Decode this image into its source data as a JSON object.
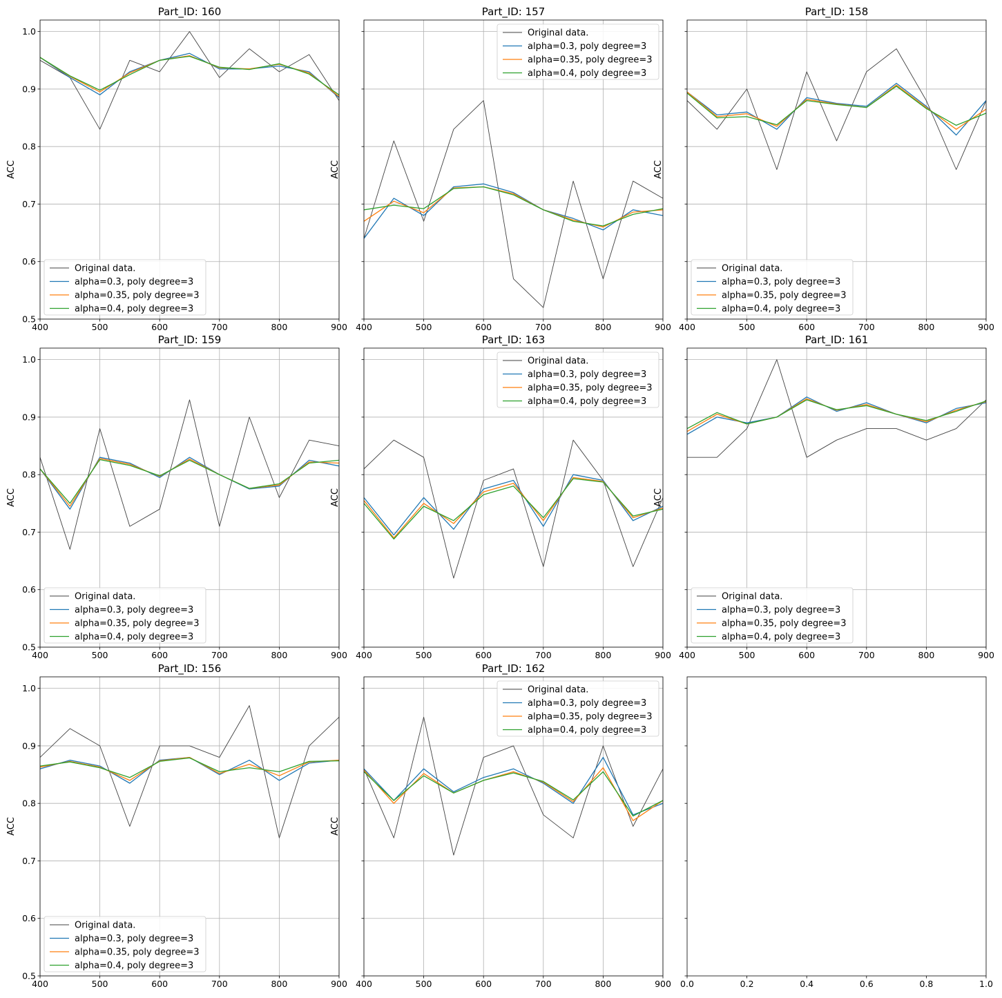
{
  "legend_labels": [
    "Original data.",
    "alpha=0.3, poly degree=3",
    "alpha=0.35, poly degree=3",
    "alpha=0.4, poly degree=3"
  ],
  "colors": {
    "original": "#404040",
    "a030": "#1f77b4",
    "a035": "#ff7f0e",
    "a040": "#2ca02c",
    "grid": "#b0b0b0"
  },
  "chart_data": [
    {
      "type": "line",
      "title": "Part_ID: 160",
      "ylabel": "ACC",
      "xlim": [
        400,
        900
      ],
      "ylim": [
        0.5,
        1.02
      ],
      "xticks": [
        400,
        500,
        600,
        700,
        800,
        900
      ],
      "yticks": [
        0.5,
        0.6,
        0.7,
        0.8,
        0.9,
        1.0
      ],
      "grid": true,
      "legend": "lower-left",
      "x": [
        400,
        450,
        500,
        550,
        600,
        650,
        700,
        750,
        800,
        850,
        900
      ],
      "series": [
        {
          "name": "Original data.",
          "values": [
            0.95,
            0.92,
            0.83,
            0.95,
            0.93,
            1.0,
            0.92,
            0.97,
            0.93,
            0.96,
            0.88
          ]
        },
        {
          "name": "alpha=0.3, poly degree=3",
          "values": [
            0.955,
            0.92,
            0.89,
            0.93,
            0.95,
            0.962,
            0.935,
            0.935,
            0.94,
            0.93,
            0.885
          ]
        },
        {
          "name": "alpha=0.35, poly degree=3",
          "values": [
            0.955,
            0.922,
            0.895,
            0.928,
            0.95,
            0.958,
            0.937,
            0.935,
            0.943,
            0.928,
            0.887
          ]
        },
        {
          "name": "alpha=0.4, poly degree=3",
          "values": [
            0.955,
            0.923,
            0.898,
            0.925,
            0.95,
            0.957,
            0.938,
            0.934,
            0.944,
            0.926,
            0.89
          ]
        }
      ]
    },
    {
      "type": "line",
      "title": "Part_ID: 157",
      "ylabel": "ACC",
      "xlim": [
        400,
        900
      ],
      "ylim": [
        0.5,
        1.02
      ],
      "xticks": [
        400,
        500,
        600,
        700,
        800,
        900
      ],
      "yticks": [
        0.5,
        0.6,
        0.7,
        0.8,
        0.9,
        1.0
      ],
      "grid": true,
      "legend": "upper-right",
      "x": [
        400,
        450,
        500,
        550,
        600,
        650,
        700,
        750,
        800,
        850,
        900
      ],
      "series": [
        {
          "name": "Original data.",
          "values": [
            0.64,
            0.81,
            0.67,
            0.83,
            0.88,
            0.57,
            0.52,
            0.74,
            0.57,
            0.74,
            0.71
          ]
        },
        {
          "name": "alpha=0.3, poly degree=3",
          "values": [
            0.64,
            0.71,
            0.68,
            0.73,
            0.735,
            0.72,
            0.69,
            0.675,
            0.655,
            0.69,
            0.68
          ]
        },
        {
          "name": "alpha=0.35, poly degree=3",
          "values": [
            0.67,
            0.705,
            0.685,
            0.728,
            0.73,
            0.718,
            0.69,
            0.672,
            0.66,
            0.686,
            0.69
          ]
        },
        {
          "name": "alpha=0.4, poly degree=3",
          "values": [
            0.69,
            0.698,
            0.692,
            0.727,
            0.73,
            0.716,
            0.69,
            0.67,
            0.662,
            0.682,
            0.692
          ]
        }
      ]
    },
    {
      "type": "line",
      "title": "Part_ID: 158",
      "ylabel": "ACC",
      "xlim": [
        400,
        900
      ],
      "ylim": [
        0.5,
        1.02
      ],
      "xticks": [
        400,
        500,
        600,
        700,
        800,
        900
      ],
      "yticks": [
        0.5,
        0.6,
        0.7,
        0.8,
        0.9,
        1.0
      ],
      "grid": true,
      "legend": "lower-left",
      "x": [
        400,
        450,
        500,
        550,
        600,
        650,
        700,
        750,
        800,
        850,
        900
      ],
      "series": [
        {
          "name": "Original data.",
          "values": [
            0.88,
            0.83,
            0.9,
            0.76,
            0.93,
            0.81,
            0.93,
            0.97,
            0.88,
            0.76,
            0.88
          ]
        },
        {
          "name": "alpha=0.3, poly degree=3",
          "values": [
            0.895,
            0.855,
            0.86,
            0.83,
            0.885,
            0.875,
            0.87,
            0.91,
            0.87,
            0.82,
            0.88
          ]
        },
        {
          "name": "alpha=0.35, poly degree=3",
          "values": [
            0.895,
            0.852,
            0.857,
            0.835,
            0.882,
            0.874,
            0.868,
            0.907,
            0.868,
            0.83,
            0.865
          ]
        },
        {
          "name": "alpha=0.4, poly degree=3",
          "values": [
            0.893,
            0.85,
            0.852,
            0.838,
            0.88,
            0.873,
            0.868,
            0.905,
            0.866,
            0.837,
            0.858
          ]
        }
      ]
    },
    {
      "type": "line",
      "title": "Part_ID: 159",
      "ylabel": "ACC",
      "xlim": [
        400,
        900
      ],
      "ylim": [
        0.5,
        1.02
      ],
      "xticks": [
        400,
        500,
        600,
        700,
        800,
        900
      ],
      "yticks": [
        0.5,
        0.6,
        0.7,
        0.8,
        0.9,
        1.0
      ],
      "grid": true,
      "legend": "lower-left",
      "x": [
        400,
        450,
        500,
        550,
        600,
        650,
        700,
        750,
        800,
        850,
        900
      ],
      "series": [
        {
          "name": "Original data.",
          "values": [
            0.83,
            0.67,
            0.88,
            0.71,
            0.74,
            0.93,
            0.71,
            0.9,
            0.76,
            0.86,
            0.85
          ]
        },
        {
          "name": "alpha=0.3, poly degree=3",
          "values": [
            0.81,
            0.74,
            0.83,
            0.82,
            0.795,
            0.83,
            0.8,
            0.775,
            0.78,
            0.825,
            0.815
          ]
        },
        {
          "name": "alpha=0.35, poly degree=3",
          "values": [
            0.81,
            0.745,
            0.828,
            0.818,
            0.797,
            0.827,
            0.8,
            0.776,
            0.782,
            0.822,
            0.82
          ]
        },
        {
          "name": "alpha=0.4, poly degree=3",
          "values": [
            0.81,
            0.75,
            0.826,
            0.816,
            0.798,
            0.825,
            0.8,
            0.776,
            0.784,
            0.82,
            0.825
          ]
        }
      ]
    },
    {
      "type": "line",
      "title": "Part_ID: 163",
      "ylabel": "ACC",
      "xlim": [
        400,
        900
      ],
      "ylim": [
        0.5,
        1.02
      ],
      "xticks": [
        400,
        500,
        600,
        700,
        800,
        900
      ],
      "yticks": [
        0.5,
        0.6,
        0.7,
        0.8,
        0.9,
        1.0
      ],
      "grid": true,
      "legend": "upper-right",
      "x": [
        400,
        450,
        500,
        550,
        600,
        650,
        700,
        750,
        800,
        850,
        900
      ],
      "series": [
        {
          "name": "Original data.",
          "values": [
            0.81,
            0.86,
            0.83,
            0.62,
            0.79,
            0.81,
            0.64,
            0.86,
            0.79,
            0.64,
            0.76
          ]
        },
        {
          "name": "alpha=0.3, poly degree=3",
          "values": [
            0.76,
            0.695,
            0.76,
            0.705,
            0.775,
            0.79,
            0.71,
            0.8,
            0.79,
            0.72,
            0.745
          ]
        },
        {
          "name": "alpha=0.35, poly degree=3",
          "values": [
            0.755,
            0.69,
            0.75,
            0.715,
            0.77,
            0.785,
            0.72,
            0.795,
            0.788,
            0.725,
            0.742
          ]
        },
        {
          "name": "alpha=0.4, poly degree=3",
          "values": [
            0.75,
            0.688,
            0.745,
            0.72,
            0.765,
            0.78,
            0.725,
            0.793,
            0.787,
            0.728,
            0.74
          ]
        }
      ]
    },
    {
      "type": "line",
      "title": "Part_ID: 161",
      "ylabel": "ACC",
      "xlim": [
        400,
        900
      ],
      "ylim": [
        0.5,
        1.02
      ],
      "xticks": [
        400,
        500,
        600,
        700,
        800,
        900
      ],
      "yticks": [
        0.5,
        0.6,
        0.7,
        0.8,
        0.9,
        1.0
      ],
      "grid": true,
      "legend": "lower-left",
      "x": [
        400,
        450,
        500,
        550,
        600,
        650,
        700,
        750,
        800,
        850,
        900
      ],
      "series": [
        {
          "name": "Original data.",
          "values": [
            0.83,
            0.83,
            0.88,
            1.0,
            0.83,
            0.86,
            0.88,
            0.88,
            0.86,
            0.88,
            0.93
          ]
        },
        {
          "name": "alpha=0.3, poly degree=3",
          "values": [
            0.87,
            0.9,
            0.89,
            0.9,
            0.935,
            0.91,
            0.925,
            0.905,
            0.89,
            0.915,
            0.925
          ]
        },
        {
          "name": "alpha=0.35, poly degree=3",
          "values": [
            0.875,
            0.905,
            0.888,
            0.9,
            0.932,
            0.912,
            0.922,
            0.905,
            0.892,
            0.912,
            0.927
          ]
        },
        {
          "name": "alpha=0.4, poly degree=3",
          "values": [
            0.88,
            0.908,
            0.888,
            0.9,
            0.93,
            0.913,
            0.92,
            0.905,
            0.894,
            0.91,
            0.928
          ]
        }
      ]
    },
    {
      "type": "line",
      "title": "Part_ID: 156",
      "ylabel": "ACC",
      "xlim": [
        400,
        900
      ],
      "ylim": [
        0.5,
        1.02
      ],
      "xticks": [
        400,
        500,
        600,
        700,
        800,
        900
      ],
      "yticks": [
        0.5,
        0.6,
        0.7,
        0.8,
        0.9,
        1.0
      ],
      "grid": true,
      "legend": "lower-left",
      "x": [
        400,
        450,
        500,
        550,
        600,
        650,
        700,
        750,
        800,
        850,
        900
      ],
      "series": [
        {
          "name": "Original data.",
          "values": [
            0.88,
            0.93,
            0.9,
            0.76,
            0.9,
            0.9,
            0.88,
            0.97,
            0.74,
            0.9,
            0.95
          ]
        },
        {
          "name": "alpha=0.3, poly degree=3",
          "values": [
            0.86,
            0.875,
            0.865,
            0.835,
            0.875,
            0.88,
            0.85,
            0.875,
            0.84,
            0.87,
            0.875
          ]
        },
        {
          "name": "alpha=0.35, poly degree=3",
          "values": [
            0.863,
            0.873,
            0.863,
            0.84,
            0.874,
            0.88,
            0.852,
            0.868,
            0.848,
            0.872,
            0.875
          ]
        },
        {
          "name": "alpha=0.4, poly degree=3",
          "values": [
            0.865,
            0.872,
            0.862,
            0.845,
            0.873,
            0.879,
            0.855,
            0.862,
            0.855,
            0.873,
            0.874
          ]
        }
      ]
    },
    {
      "type": "line",
      "title": "Part_ID: 162",
      "ylabel": "ACC",
      "xlim": [
        400,
        900
      ],
      "ylim": [
        0.5,
        1.02
      ],
      "xticks": [
        400,
        500,
        600,
        700,
        800,
        900
      ],
      "yticks": [
        0.5,
        0.6,
        0.7,
        0.8,
        0.9,
        1.0
      ],
      "grid": true,
      "legend": "upper-right",
      "x": [
        400,
        450,
        500,
        550,
        600,
        650,
        700,
        750,
        800,
        850,
        900
      ],
      "series": [
        {
          "name": "Original data.",
          "values": [
            0.86,
            0.74,
            0.95,
            0.71,
            0.88,
            0.9,
            0.78,
            0.74,
            0.9,
            0.76,
            0.86
          ]
        },
        {
          "name": "alpha=0.3, poly degree=3",
          "values": [
            0.86,
            0.805,
            0.86,
            0.82,
            0.845,
            0.86,
            0.835,
            0.8,
            0.88,
            0.78,
            0.8
          ]
        },
        {
          "name": "alpha=0.35, poly degree=3",
          "values": [
            0.858,
            0.8,
            0.852,
            0.818,
            0.84,
            0.855,
            0.837,
            0.803,
            0.862,
            0.77,
            0.805
          ]
        },
        {
          "name": "alpha=0.4, poly degree=3",
          "values": [
            0.855,
            0.805,
            0.848,
            0.818,
            0.84,
            0.853,
            0.838,
            0.806,
            0.855,
            0.778,
            0.805
          ]
        }
      ]
    },
    {
      "type": "line",
      "title": "",
      "ylabel": "",
      "xlim": [
        0.0,
        1.0
      ],
      "ylim": [
        0.5,
        1.02
      ],
      "xticks": [
        0.0,
        0.2,
        0.4,
        0.6,
        0.8,
        1.0
      ],
      "xtick_labels": [
        "0.0",
        "0.2",
        "0.4",
        "0.6",
        "0.8",
        "1.0"
      ],
      "yticks": [
        0.5,
        0.6,
        0.7,
        0.8,
        0.9,
        1.0
      ],
      "grid": false,
      "legend": "none",
      "x": [],
      "series": []
    }
  ]
}
